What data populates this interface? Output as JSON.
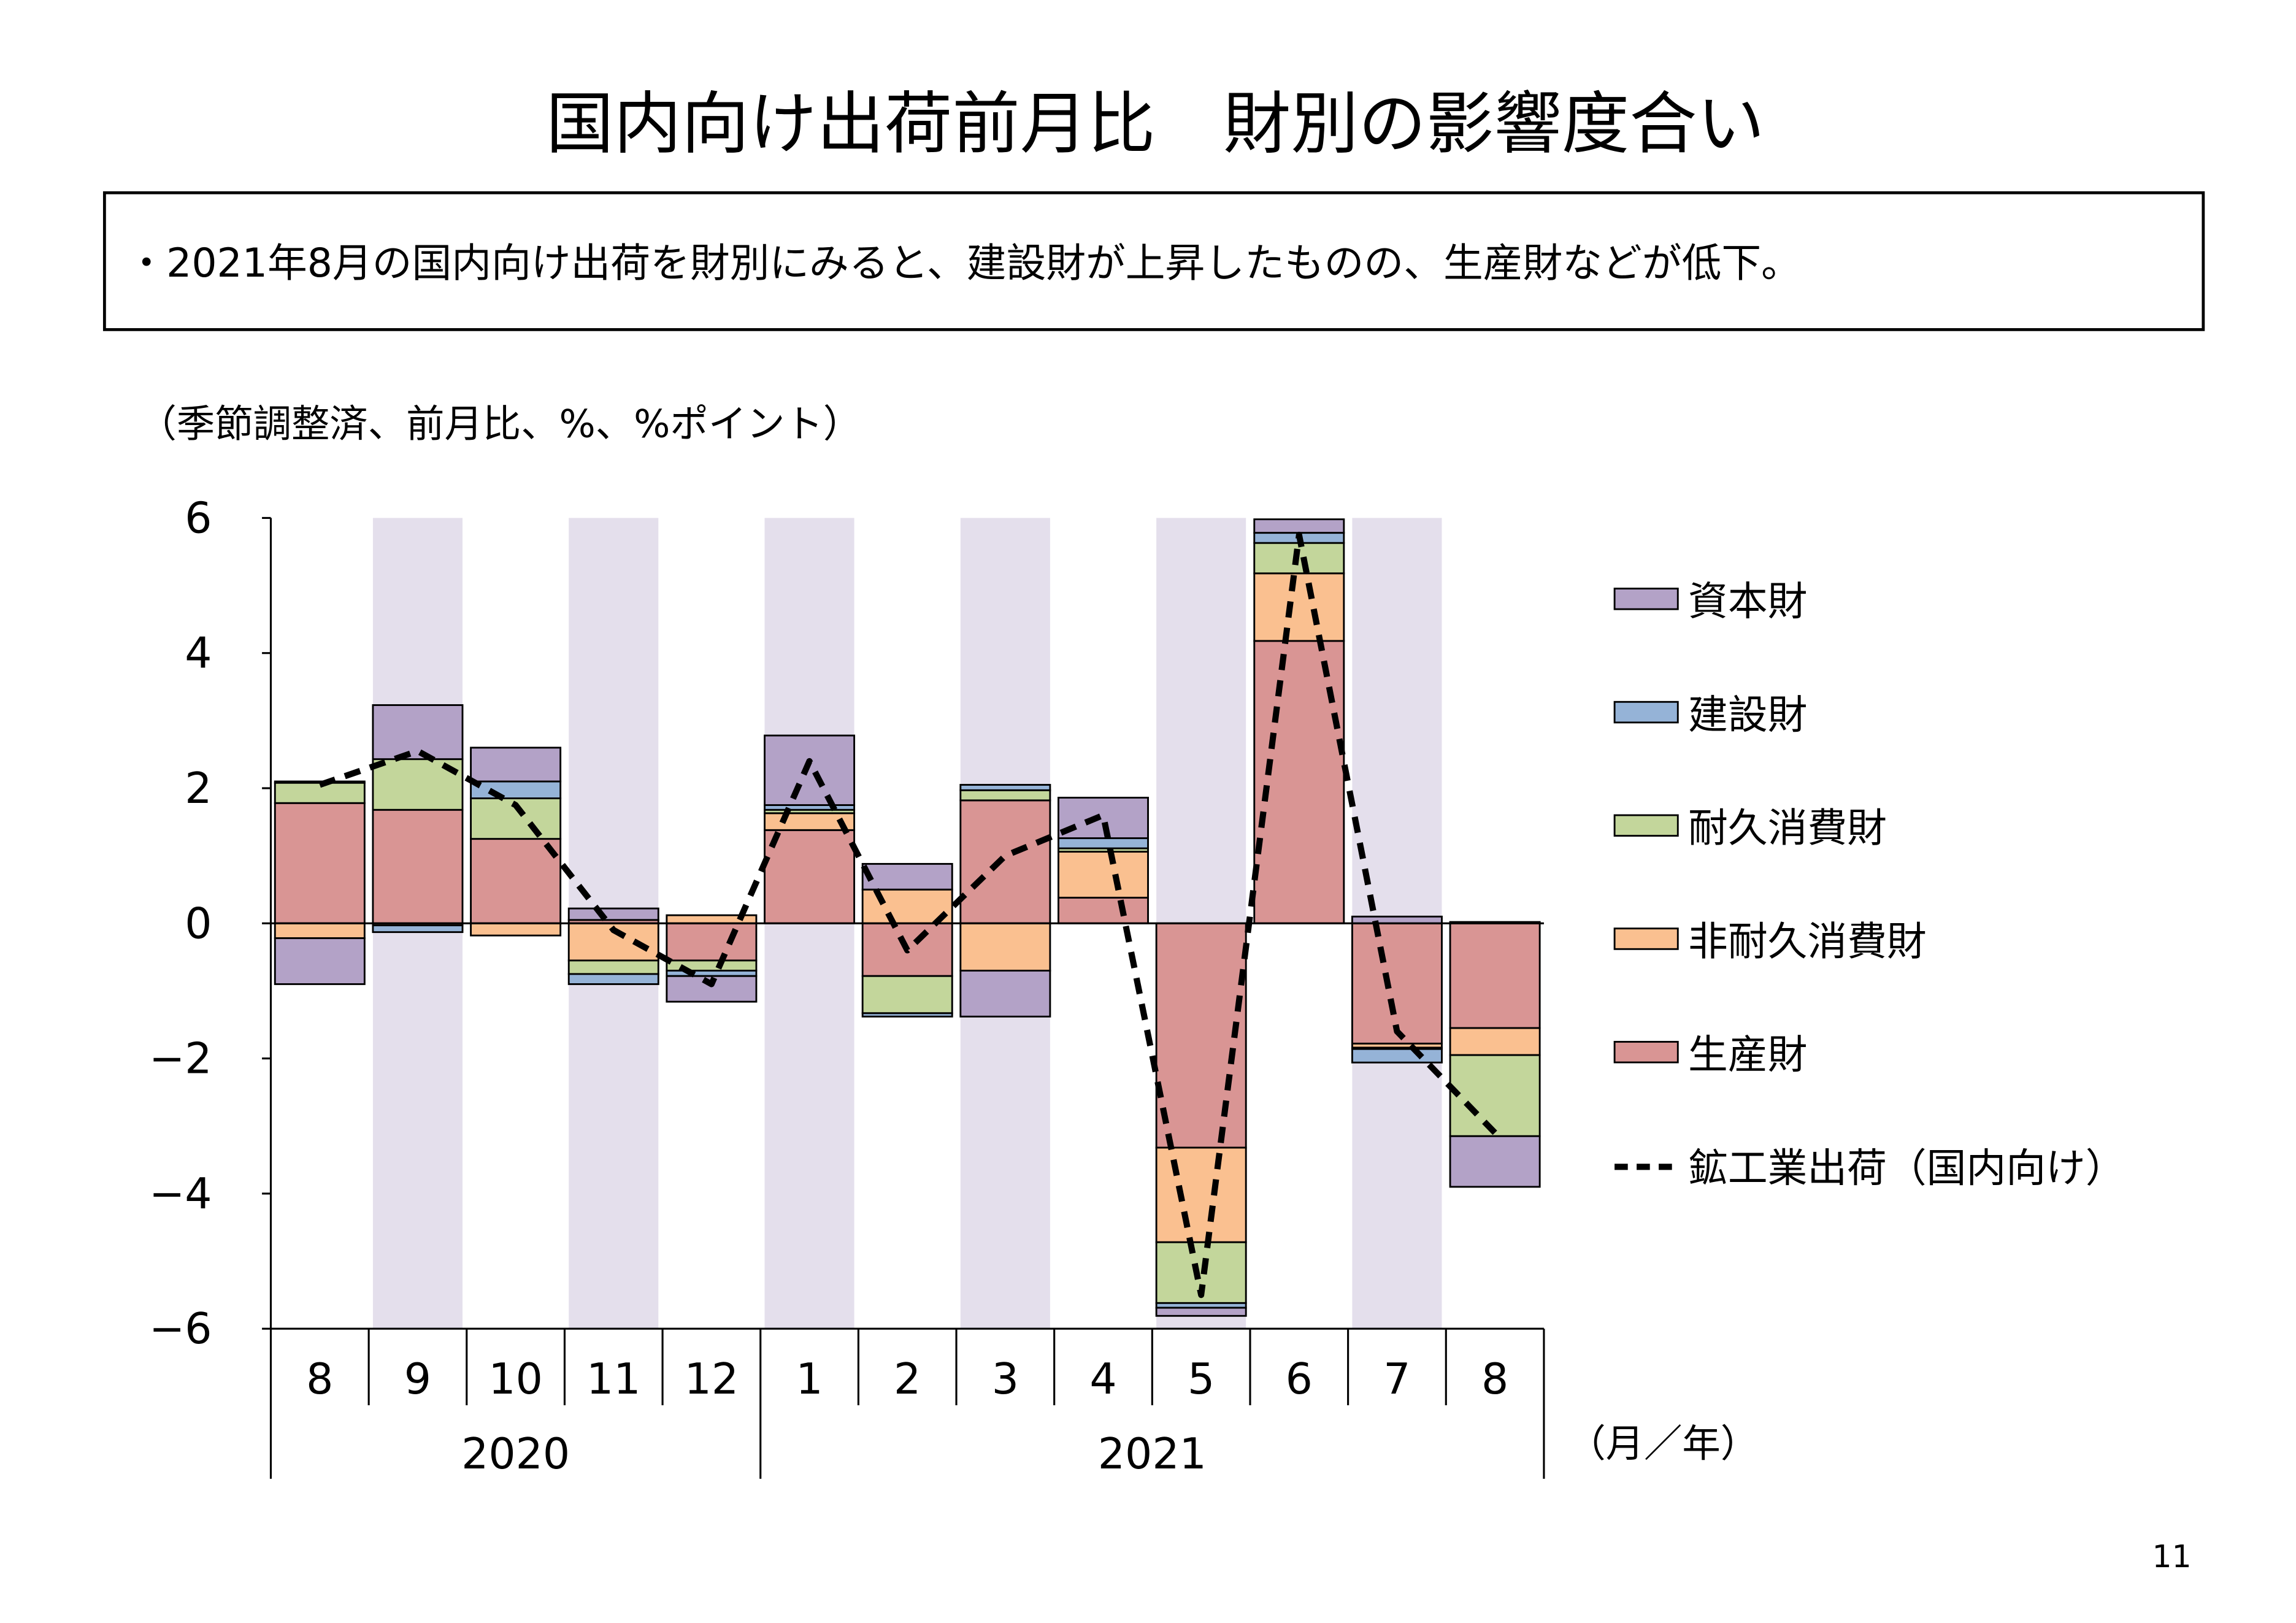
{
  "page": {
    "title": "国内向け出荷前月比　財別の影響度合い",
    "note": "・2021年8月の国内向け出荷を財別にみると、建設財が上昇したものの、生産財などが低下。",
    "page_number": "11"
  },
  "chart_data": {
    "type": "bar",
    "stacked": true,
    "y_unit_label": "（季節調整済、前月比、%、%ポイント）",
    "x_unit_label": "（月／年）",
    "ylim": [
      -6,
      6
    ],
    "yticks": [
      "6",
      "4",
      "2",
      "0",
      "−2",
      "−4",
      "−6"
    ],
    "ytick_values": [
      6,
      4,
      2,
      0,
      -2,
      -4,
      -6
    ],
    "categories": [
      "8",
      "9",
      "10",
      "11",
      "12",
      "1",
      "2",
      "3",
      "4",
      "5",
      "6",
      "7",
      "8"
    ],
    "years": [
      {
        "label": "2020",
        "start": 0,
        "end": 4
      },
      {
        "label": "2021",
        "start": 5,
        "end": 12
      }
    ],
    "shaded_categories": [
      1,
      3,
      5,
      7,
      9,
      11
    ],
    "series": [
      {
        "name": "生産財",
        "color": "#d99594",
        "values": [
          1.78,
          1.68,
          1.25,
          0.05,
          -0.55,
          1.38,
          -0.78,
          1.82,
          0.38,
          -3.32,
          4.18,
          -1.78,
          -1.55
        ]
      },
      {
        "name": "非耐久消費財",
        "color": "#fac090",
        "values": [
          -0.22,
          -0.03,
          -0.18,
          -0.55,
          0.12,
          0.25,
          0.5,
          -0.7,
          0.68,
          -1.4,
          1.0,
          -0.06,
          -0.4
        ]
      },
      {
        "name": "耐久消費財",
        "color": "#c3d69b",
        "values": [
          0.3,
          0.75,
          0.6,
          -0.2,
          -0.15,
          0.05,
          -0.55,
          0.15,
          0.05,
          -0.9,
          0.45,
          -0.02,
          -1.2
        ]
      },
      {
        "name": "建設財",
        "color": "#95b3d7",
        "values": [
          0.02,
          -0.1,
          0.25,
          -0.15,
          -0.08,
          0.07,
          -0.05,
          0.08,
          0.15,
          -0.07,
          0.15,
          -0.2,
          0.02
        ]
      },
      {
        "name": "資本財",
        "color": "#b3a2c7",
        "values": [
          -0.68,
          0.8,
          0.5,
          0.17,
          -0.38,
          1.03,
          0.38,
          -0.68,
          0.6,
          -0.12,
          0.2,
          0.1,
          -0.75
        ]
      }
    ],
    "line": {
      "name": "鉱工業出荷（国内向け）",
      "values": [
        2.05,
        2.55,
        1.75,
        -0.1,
        -0.9,
        2.4,
        -0.4,
        1.0,
        1.6,
        -5.5,
        5.75,
        -1.6,
        -3.1
      ]
    },
    "legend_order": [
      "資本財",
      "建設財",
      "耐久消費財",
      "非耐久消費財",
      "生産財",
      "鉱工業出荷（国内向け）"
    ],
    "grid": false,
    "legend_position": "right"
  }
}
